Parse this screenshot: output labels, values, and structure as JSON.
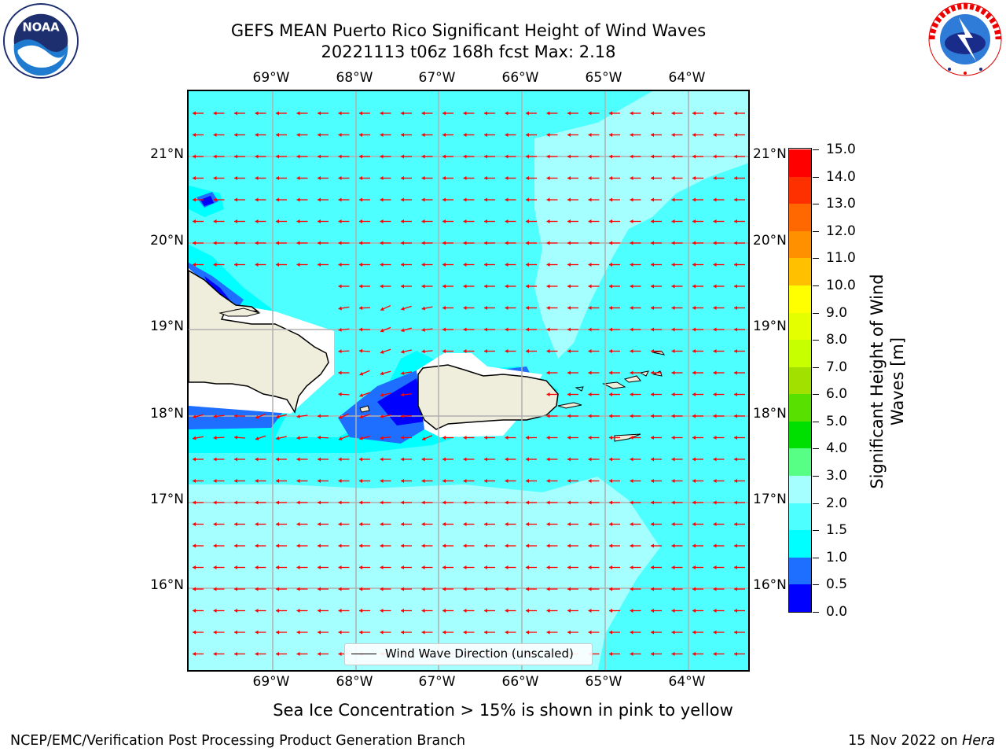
{
  "header": {
    "title_line1": "GEFS MEAN Puerto Rico Significant Height of Wind Waves",
    "title_line2": "20221113 t06z 168h fcst   Max: 2.18"
  },
  "logos": {
    "left": {
      "icon": "noaa-logo-icon",
      "text": "NOAA",
      "ring_text": "NATIONAL OCEANIC AND ATMOSPHERIC ADMINISTRATION · U.S. DEPARTMENT OF COMMERCE"
    },
    "right": {
      "icon": "national-weather-service-logo-icon",
      "ring_text": "NATIONAL WEATHER SERVICE"
    }
  },
  "map": {
    "lon_labels": [
      "69°W",
      "68°W",
      "67°W",
      "66°W",
      "65°W",
      "64°W"
    ],
    "lat_labels": [
      "21°N",
      "20°N",
      "19°N",
      "18°N",
      "17°N",
      "16°N"
    ],
    "lon_range": [
      -70.0,
      -63.25
    ],
    "lat_range": [
      15.0,
      21.75
    ],
    "legend_label": "Wind Wave Direction (unscaled)",
    "arrow_color": "#ff0000",
    "land_color": "#efeddc",
    "grid": true
  },
  "colorbar": {
    "label": "Significant Height of Wind Waves [m]",
    "ticks": [
      "15.0",
      "14.0",
      "13.0",
      "12.0",
      "11.0",
      "10.0",
      "9.0",
      "8.0",
      "7.0",
      "6.0",
      "5.0",
      "4.0",
      "3.0",
      "2.0",
      "1.5",
      "1.0",
      "0.5",
      "0.0"
    ],
    "levels": [
      0,
      0.5,
      1.0,
      1.5,
      2.0,
      3.0,
      4.0,
      5.0,
      6.0,
      7.0,
      8.0,
      9.0,
      10.0,
      11.0,
      12.0,
      13.0,
      14.0,
      15.0
    ],
    "colors": [
      "#0000ff",
      "#1e6fff",
      "#00ffff",
      "#4dffff",
      "#a5ffff",
      "#57ff84",
      "#00e000",
      "#58e000",
      "#a2e000",
      "#c8ff00",
      "#e4ff00",
      "#ffff00",
      "#ffc000",
      "#ff9000",
      "#ff6800",
      "#ff3000",
      "#ff0000"
    ]
  },
  "footer": {
    "ice_note": "Sea Ice Concentration > 15% is shown in pink to yellow",
    "credit": "NCEP/EMC/Verification Post Processing Product Generation Branch",
    "date": "15 Nov 2022 on",
    "host": "Hera"
  }
}
